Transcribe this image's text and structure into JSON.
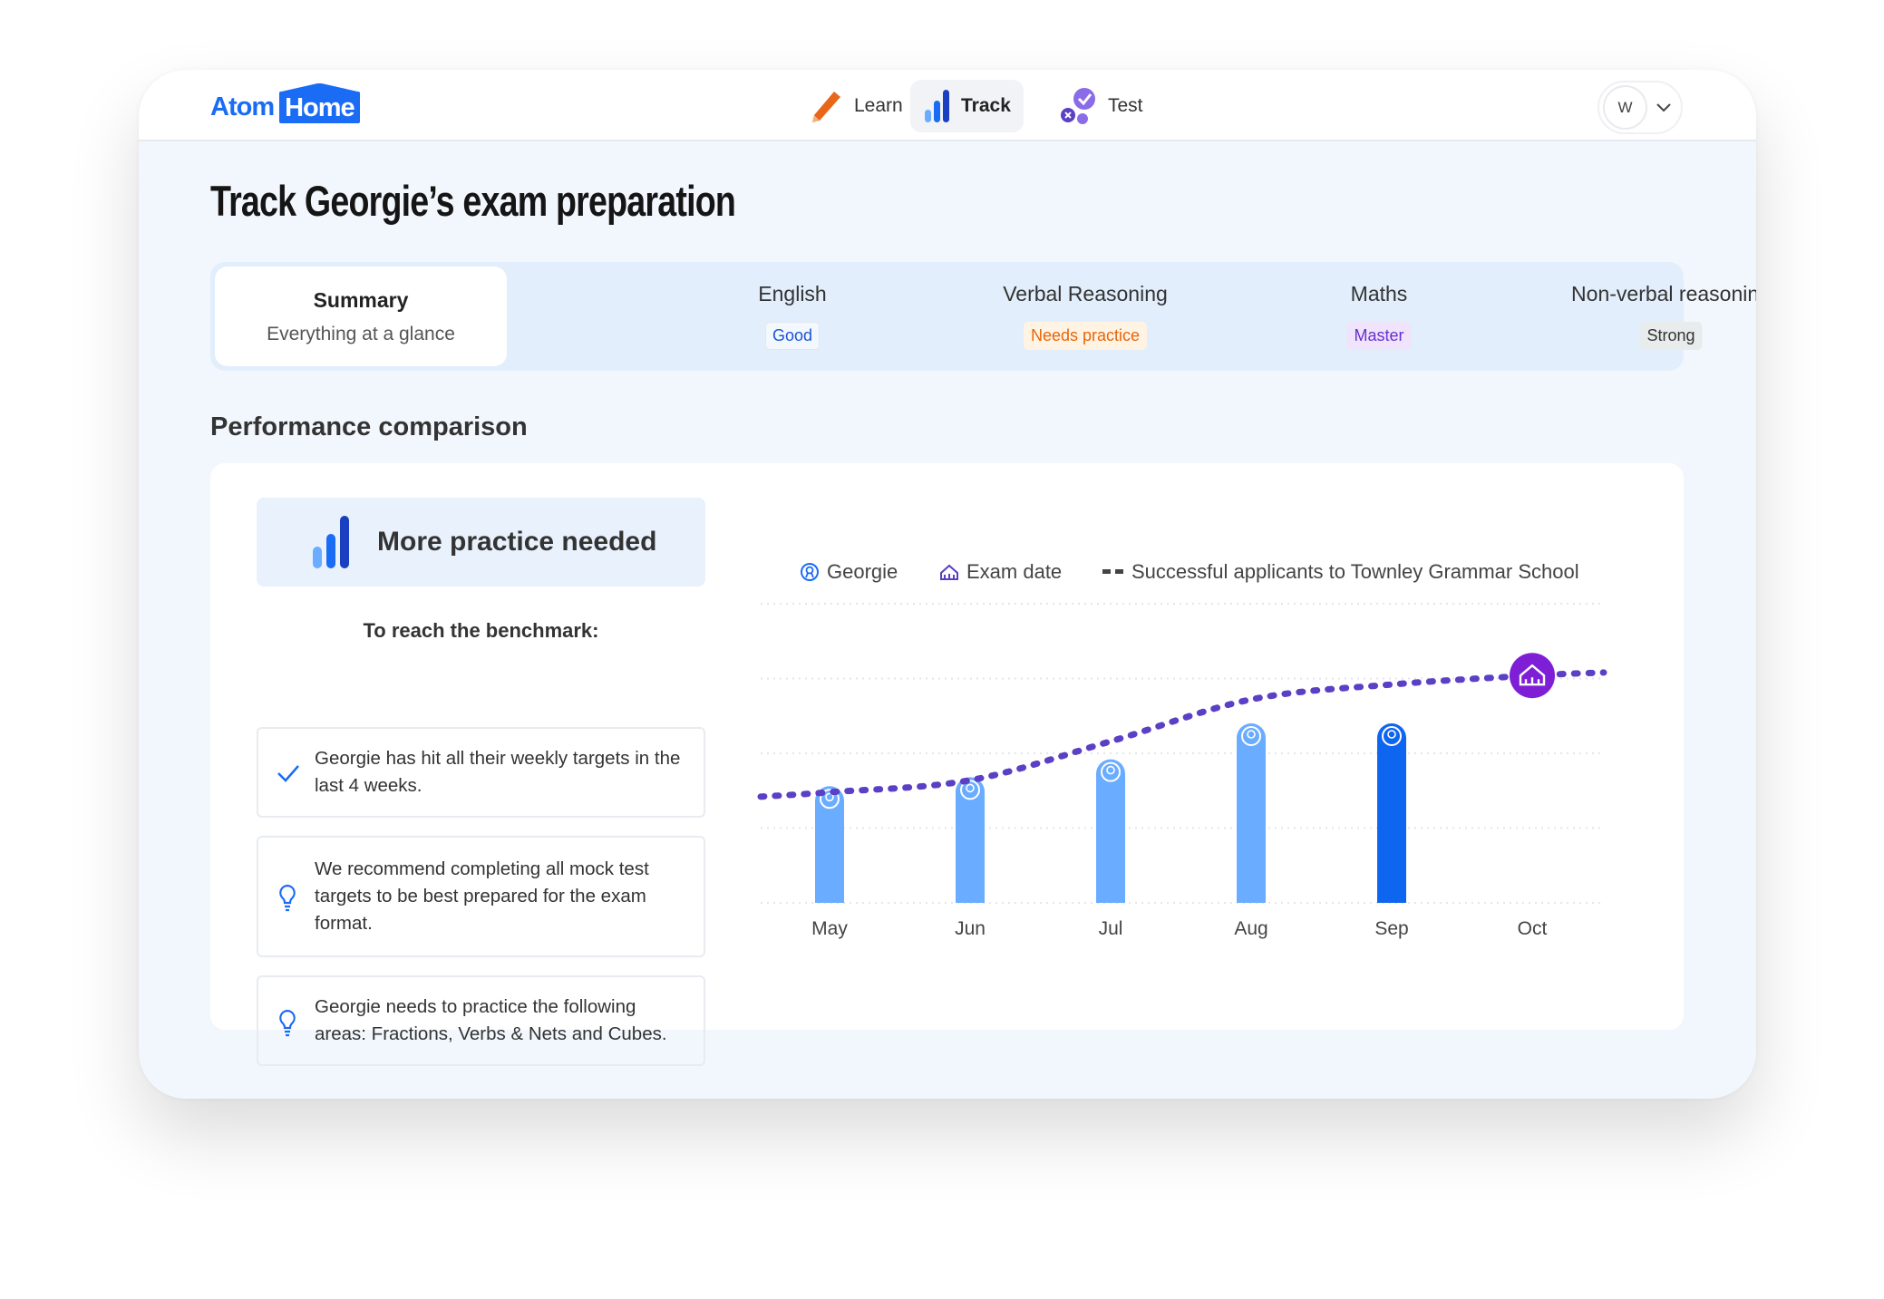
{
  "header": {
    "logo": {
      "part1": "Atom",
      "part2": "Home"
    },
    "nav": [
      {
        "label": "Learn",
        "icon": "pencil-icon"
      },
      {
        "label": "Track",
        "icon": "bar-chart-icon",
        "active": true
      },
      {
        "label": "Test",
        "icon": "test-check-icon"
      }
    ],
    "avatar": "W"
  },
  "title": "Track Georgie’s exam preparation",
  "tabs": {
    "summary": {
      "label": "Summary",
      "sub": "Everything at a glance"
    },
    "subjects": [
      {
        "label": "English",
        "badge": "Good",
        "color": "#1a55d6",
        "bg": "#f3f7fe"
      },
      {
        "label": "Verbal Reasoning",
        "badge": "Needs practice",
        "color": "#e8650a",
        "bg": "#fff3e3"
      },
      {
        "label": "Maths",
        "badge": "Master",
        "color": "#6a2fd0",
        "bg": "#efe4fb"
      },
      {
        "label": "Non-verbal reasoning",
        "badge": "Strong",
        "color": "#333333",
        "bg": "#e9ecec"
      }
    ]
  },
  "section_title": "Performance comparison",
  "status": {
    "text": "More practice needed"
  },
  "benchmark_title": "To reach the benchmark:",
  "items": [
    {
      "icon": "check-icon",
      "text": "Georgie has hit all their weekly targets in the last 4 weeks."
    },
    {
      "icon": "lightbulb-icon",
      "text": "We recommend completing all mock test targets to be best prepared for the exam format."
    },
    {
      "icon": "lightbulb-icon",
      "text": "Georgie needs to practice the following areas: Fractions, Verbs & Nets and Cubes."
    }
  ],
  "chart_data": {
    "type": "bar",
    "categories": [
      "May",
      "Jun",
      "Jul",
      "Aug",
      "Sep",
      "Oct"
    ],
    "legend": [
      "Georgie",
      "Exam date",
      "Successful applicants to Townley Grammar School"
    ],
    "legend_placement": "top",
    "series": [
      {
        "name": "Georgie",
        "type": "bar",
        "values": [
          39,
          42,
          48,
          60,
          60,
          null
        ],
        "color": "#6aacff",
        "highlight_color": "#0e66f0"
      },
      {
        "name": "Successful applicants to Townley Grammar School",
        "type": "dashed-line",
        "values": [
          37,
          41,
          54,
          68,
          73,
          76
        ],
        "color": "#5b3fc4"
      }
    ],
    "exam_date": "Oct",
    "exam_color": "#7e1fd6",
    "ylim": [
      0,
      100
    ],
    "grid": true
  }
}
